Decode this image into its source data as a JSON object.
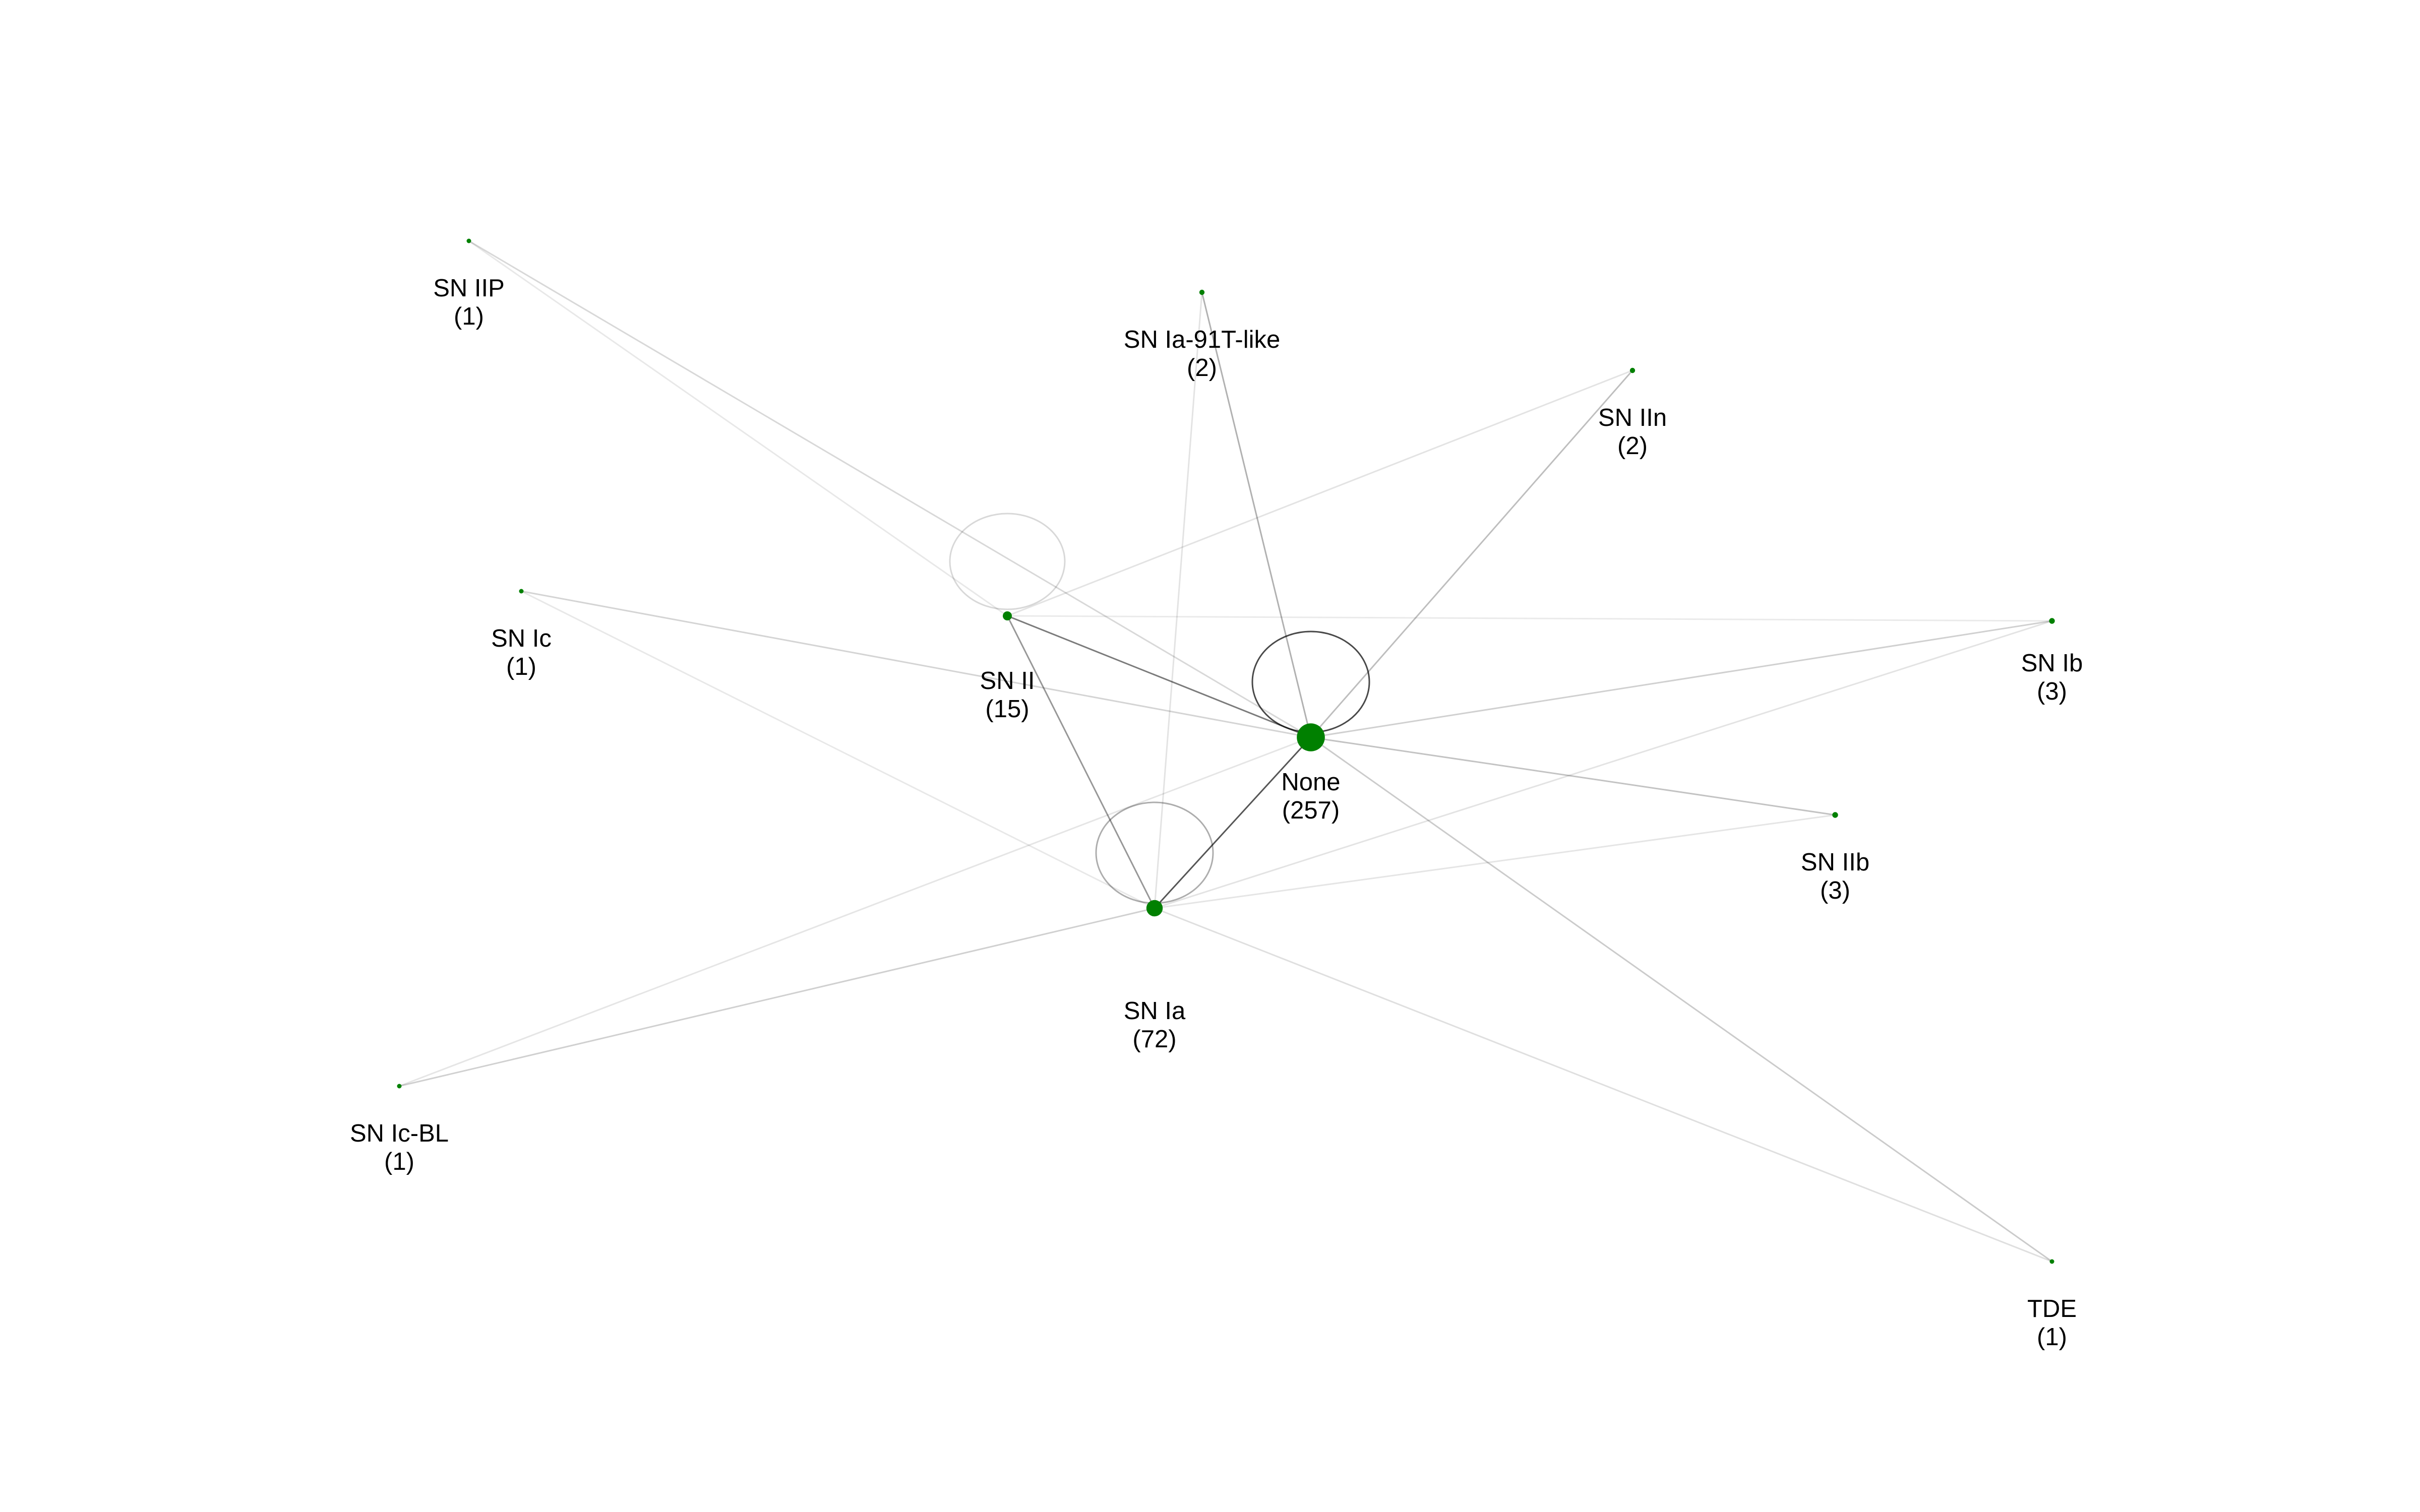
{
  "colors": {
    "background": "#ffffff",
    "node": "#008000",
    "edge": "#000000"
  },
  "nodes": [
    {
      "id": "none",
      "name": "None",
      "count_label": "(257)",
      "count": 257
    },
    {
      "id": "sn-ia",
      "name": "SN Ia",
      "count_label": "(72)",
      "count": 72
    },
    {
      "id": "sn-ii",
      "name": "SN II",
      "count_label": "(15)",
      "count": 15
    },
    {
      "id": "sn-ib",
      "name": "SN Ib",
      "count_label": "(3)",
      "count": 3
    },
    {
      "id": "sn-iib",
      "name": "SN IIb",
      "count_label": "(3)",
      "count": 3
    },
    {
      "id": "sn-ia-91t",
      "name": "SN Ia-91T-like",
      "count_label": "(2)",
      "count": 2
    },
    {
      "id": "sn-iin",
      "name": "SN IIn",
      "count_label": "(2)",
      "count": 2
    },
    {
      "id": "sn-iip",
      "name": "SN IIP",
      "count_label": "(1)",
      "count": 1
    },
    {
      "id": "sn-ic",
      "name": "SN Ic",
      "count_label": "(1)",
      "count": 1
    },
    {
      "id": "sn-ic-bl",
      "name": "SN Ic-BL",
      "count_label": "(1)",
      "count": 1
    },
    {
      "id": "tde",
      "name": "TDE",
      "count_label": "(1)",
      "count": 1
    }
  ],
  "edges": [
    {
      "source": "none",
      "target": "none",
      "weight": 0.78
    },
    {
      "source": "sn-ia",
      "target": "sn-ia",
      "weight": 0.32
    },
    {
      "source": "sn-ii",
      "target": "sn-ii",
      "weight": 0.12
    },
    {
      "source": "none",
      "target": "sn-ia",
      "weight": 0.72
    },
    {
      "source": "none",
      "target": "sn-ii",
      "weight": 0.55
    },
    {
      "source": "sn-ia",
      "target": "sn-ii",
      "weight": 0.42
    },
    {
      "source": "none",
      "target": "sn-ia-91t",
      "weight": 0.3
    },
    {
      "source": "none",
      "target": "sn-iin",
      "weight": 0.24
    },
    {
      "source": "none",
      "target": "sn-ib",
      "weight": 0.16
    },
    {
      "source": "none",
      "target": "sn-iib",
      "weight": 0.22
    },
    {
      "source": "none",
      "target": "tde",
      "weight": 0.18
    },
    {
      "source": "none",
      "target": "sn-iip",
      "weight": 0.12
    },
    {
      "source": "none",
      "target": "sn-ic",
      "weight": 0.14
    },
    {
      "source": "sn-ia",
      "target": "sn-ic-bl",
      "weight": 0.16
    },
    {
      "source": "none",
      "target": "sn-ic-bl",
      "weight": 0.06
    },
    {
      "source": "sn-ia",
      "target": "tde",
      "weight": 0.09
    },
    {
      "source": "sn-ia",
      "target": "sn-ib",
      "weight": 0.07
    },
    {
      "source": "sn-ia",
      "target": "sn-iib",
      "weight": 0.06
    },
    {
      "source": "sn-ia",
      "target": "sn-ia-91t",
      "weight": 0.07
    },
    {
      "source": "sn-ia",
      "target": "sn-ic",
      "weight": 0.05
    },
    {
      "source": "sn-ii",
      "target": "sn-iin",
      "weight": 0.07
    },
    {
      "source": "sn-ii",
      "target": "sn-iip",
      "weight": 0.05
    },
    {
      "source": "sn-ii",
      "target": "sn-ib",
      "weight": 0.04
    }
  ]
}
